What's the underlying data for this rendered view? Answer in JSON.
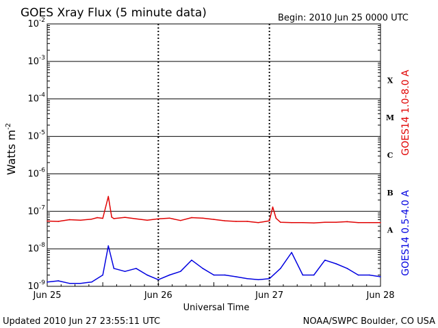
{
  "chart_data": {
    "type": "line",
    "title": "GOES Xray Flux (5 minute data)",
    "begin_label": "Begin:  2010 Jun 25 0000 UTC",
    "ylabel": "Watts m",
    "ylabel_exp": "-2",
    "xlabel": "Universal Time",
    "y_scale": "log",
    "ylim": [
      1e-09,
      0.01
    ],
    "y_ticks": [
      {
        "base": "10",
        "exp": "-9",
        "value": 1e-09
      },
      {
        "base": "10",
        "exp": "-8",
        "value": 1e-08
      },
      {
        "base": "10",
        "exp": "-7",
        "value": 1e-07
      },
      {
        "base": "10",
        "exp": "-6",
        "value": 1e-06
      },
      {
        "base": "10",
        "exp": "-5",
        "value": 1e-05
      },
      {
        "base": "10",
        "exp": "-4",
        "value": 0.0001
      },
      {
        "base": "10",
        "exp": "-3",
        "value": 0.001
      },
      {
        "base": "10",
        "exp": "-2",
        "value": 0.01
      }
    ],
    "x_ticks": [
      {
        "label": "Jun 25",
        "value": 0
      },
      {
        "label": "Jun 26",
        "value": 1
      },
      {
        "label": "Jun 27",
        "value": 2
      },
      {
        "label": "Jun 28",
        "value": 3
      }
    ],
    "xlim_days": [
      0,
      3
    ],
    "flare_classes": [
      {
        "label": "X",
        "value": 0.000316
      },
      {
        "label": "M",
        "value": 3.16e-05
      },
      {
        "label": "C",
        "value": 3.16e-06
      },
      {
        "label": "B",
        "value": 3.16e-07
      },
      {
        "label": "A",
        "value": 3.16e-08
      }
    ],
    "grid": true,
    "series": [
      {
        "name": "GOES14 1.0-8.0 A",
        "color": "#e00000",
        "x_days": [
          0,
          0.1,
          0.2,
          0.3,
          0.4,
          0.45,
          0.5,
          0.55,
          0.58,
          0.6,
          0.7,
          0.8,
          0.9,
          1.0,
          1.1,
          1.2,
          1.3,
          1.4,
          1.5,
          1.6,
          1.7,
          1.8,
          1.9,
          2.0,
          2.03,
          2.06,
          2.1,
          2.2,
          2.3,
          2.4,
          2.5,
          2.6,
          2.7,
          2.8,
          2.9,
          3.0
        ],
        "values": [
          5.5e-08,
          5.4e-08,
          6e-08,
          5.8e-08,
          6.2e-08,
          6.8e-08,
          6.5e-08,
          2.5e-07,
          7e-08,
          6.4e-08,
          6.9e-08,
          6.3e-08,
          5.8e-08,
          6.3e-08,
          6.6e-08,
          5.7e-08,
          6.8e-08,
          6.6e-08,
          6.1e-08,
          5.6e-08,
          5.4e-08,
          5.4e-08,
          5e-08,
          5.6e-08,
          1.3e-07,
          6.5e-08,
          5.1e-08,
          5e-08,
          5e-08,
          4.9e-08,
          5.1e-08,
          5.1e-08,
          5.3e-08,
          5e-08,
          5e-08,
          5e-08
        ]
      },
      {
        "name": "GOES14 0.5-4.0 A",
        "color": "#0000e0",
        "x_days": [
          0,
          0.1,
          0.2,
          0.3,
          0.4,
          0.5,
          0.55,
          0.6,
          0.7,
          0.8,
          0.9,
          1.0,
          1.1,
          1.2,
          1.3,
          1.4,
          1.5,
          1.6,
          1.7,
          1.8,
          1.9,
          2.0,
          2.1,
          2.2,
          2.3,
          2.4,
          2.5,
          2.6,
          2.7,
          2.8,
          2.9,
          3.0
        ],
        "values": [
          1.3e-09,
          1.4e-09,
          1.2e-09,
          1.2e-09,
          1.3e-09,
          2e-09,
          1.2e-08,
          3e-09,
          2.5e-09,
          3e-09,
          2e-09,
          1.5e-09,
          2e-09,
          2.5e-09,
          5e-09,
          3e-09,
          2e-09,
          2e-09,
          1.8e-09,
          1.6e-09,
          1.5e-09,
          1.6e-09,
          3e-09,
          8e-09,
          2e-09,
          2e-09,
          5e-09,
          4e-09,
          3e-09,
          2e-09,
          2e-09,
          1.8e-09
        ]
      }
    ]
  },
  "footer": {
    "updated": "Updated 2010 Jun 27 23:55:11 UTC",
    "source": "NOAA/SWPC Boulder, CO USA"
  }
}
